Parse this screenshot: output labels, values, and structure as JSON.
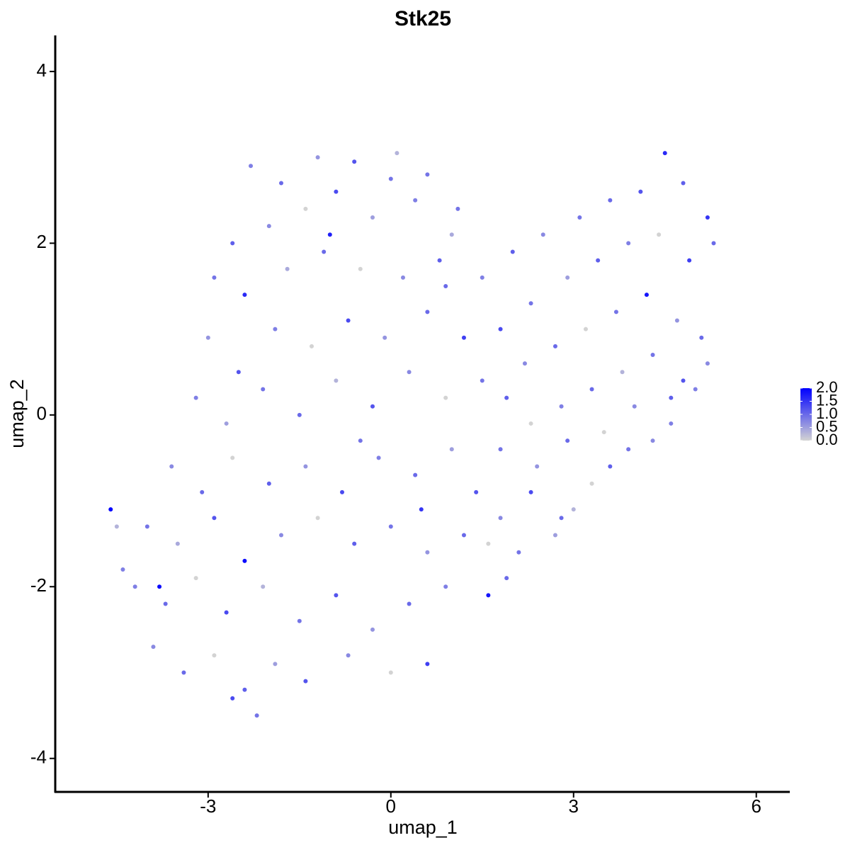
{
  "chart_data": {
    "type": "scatter",
    "title": "Stk25",
    "xlabel": "umap_1",
    "ylabel": "umap_2",
    "xlim": [
      -5.51,
      6.55
    ],
    "ylim": [
      -4.39,
      4.42
    ],
    "xticks": [
      -3,
      0,
      3,
      6
    ],
    "yticks": [
      -4,
      -2,
      0,
      2,
      4
    ],
    "colorbar_lim": [
      0,
      2
    ],
    "low_color": "#d3d3d3",
    "high_color": "#0000ff",
    "colorbar_ticks": [
      {
        "value": 0,
        "label": "0.0"
      },
      {
        "value": 0.5,
        "label": "0.5"
      },
      {
        "value": 1,
        "label": "1.0"
      },
      {
        "value": 1.5,
        "label": "1.5"
      },
      {
        "value": 2,
        "label": "2.0"
      }
    ],
    "x": [
      -2.3,
      -1.8,
      -1.2,
      -0.6,
      0.1,
      0.6,
      -2.6,
      -2.0,
      -1.4,
      -0.9,
      -0.3,
      0.4,
      1.1,
      -2.9,
      -2.4,
      -1.7,
      -1.1,
      -0.5,
      0.2,
      0.8,
      -3.0,
      -2.5,
      -1.9,
      -1.3,
      -0.7,
      -0.1,
      0.6,
      1.2,
      -3.2,
      -2.7,
      -2.1,
      -1.5,
      -0.9,
      -0.3,
      0.3,
      0.9,
      1.5,
      -3.6,
      -3.1,
      -2.6,
      -2.0,
      -1.4,
      -0.8,
      -0.2,
      0.4,
      1.0,
      -4.0,
      -3.5,
      -2.9,
      -2.4,
      -1.8,
      -1.2,
      -0.6,
      0.0,
      0.6,
      1.2,
      -4.2,
      -3.7,
      -3.2,
      -2.7,
      -2.1,
      -1.5,
      -0.9,
      -0.3,
      0.3,
      0.9,
      1.6,
      -3.9,
      -3.4,
      -2.9,
      -2.4,
      -1.9,
      -1.4,
      -0.7,
      0.0,
      0.6,
      -2.2,
      -2.6,
      -3.8,
      -4.6,
      -4.5,
      -4.4,
      1.5,
      2.0,
      2.5,
      3.1,
      3.6,
      4.1,
      4.5,
      4.8,
      5.2,
      5.3,
      4.9,
      4.4,
      3.9,
      3.4,
      2.9,
      2.3,
      1.8,
      2.2,
      2.7,
      3.2,
      3.7,
      4.2,
      4.7,
      5.1,
      5.2,
      4.8,
      4.3,
      3.8,
      3.3,
      2.8,
      2.3,
      1.9,
      1.8,
      2.4,
      2.9,
      3.5,
      4.0,
      4.6,
      5.0,
      4.6,
      3.9,
      3.3,
      2.8,
      2.3,
      1.8,
      2.1,
      2.7,
      1.9,
      3.0,
      3.6,
      4.3,
      1.4,
      1.6,
      0.9,
      0.5,
      -0.5,
      -1.0,
      0.0,
      1.0
    ],
    "y": [
      2.9,
      2.7,
      3.0,
      2.95,
      3.05,
      2.8,
      2.0,
      2.2,
      2.4,
      2.6,
      2.3,
      2.5,
      2.4,
      1.6,
      1.4,
      1.7,
      1.9,
      1.7,
      1.6,
      1.8,
      0.9,
      0.5,
      1.0,
      0.8,
      1.1,
      0.9,
      1.2,
      0.9,
      0.2,
      -0.1,
      0.3,
      0.0,
      0.4,
      0.1,
      0.5,
      0.2,
      0.4,
      -0.6,
      -0.9,
      -0.5,
      -0.8,
      -0.6,
      -0.9,
      -0.5,
      -0.7,
      -0.4,
      -1.3,
      -1.5,
      -1.2,
      -1.7,
      -1.4,
      -1.2,
      -1.5,
      -1.3,
      -1.6,
      -1.4,
      -2.0,
      -2.2,
      -1.9,
      -2.3,
      -2.0,
      -2.4,
      -2.1,
      -2.5,
      -2.2,
      -2.0,
      -2.1,
      -2.7,
      -3.0,
      -2.8,
      -3.2,
      -2.9,
      -3.1,
      -2.8,
      -3.0,
      -2.9,
      -3.5,
      -3.3,
      -2.0,
      -1.1,
      -1.3,
      -1.8,
      1.6,
      1.9,
      2.1,
      2.3,
      2.5,
      2.6,
      3.05,
      2.7,
      2.3,
      2.0,
      1.8,
      2.1,
      2.0,
      1.8,
      1.6,
      1.3,
      1.0,
      0.6,
      0.8,
      1.0,
      1.2,
      1.4,
      1.1,
      0.9,
      0.6,
      0.4,
      0.7,
      0.5,
      0.3,
      0.1,
      -0.1,
      0.2,
      -0.4,
      -0.6,
      -0.3,
      -0.2,
      0.1,
      0.2,
      0.3,
      -0.1,
      -0.4,
      -0.8,
      -1.2,
      -0.9,
      -1.2,
      -1.6,
      -1.4,
      -1.9,
      -1.1,
      -0.6,
      -0.3,
      -0.9,
      -1.5,
      1.5,
      -1.1,
      -0.3,
      2.1,
      2.75,
      2.1
    ],
    "expression": [
      0.8,
      1.0,
      0.6,
      1.2,
      0.3,
      0.9,
      1.1,
      0.7,
      0.0,
      1.3,
      0.5,
      0.8,
      0.9,
      0.9,
      1.6,
      0.4,
      1.0,
      0.0,
      0.7,
      1.1,
      0.6,
      1.2,
      0.8,
      0.0,
      1.3,
      0.6,
      1.0,
      1.4,
      0.8,
      0.5,
      0.9,
      1.0,
      0.3,
      1.2,
      0.7,
      0.0,
      0.9,
      0.7,
      1.0,
      0.0,
      1.1,
      0.6,
      1.3,
      0.8,
      1.0,
      0.5,
      0.9,
      0.4,
      1.2,
      1.9,
      0.7,
      0.0,
      1.1,
      0.9,
      0.6,
      1.0,
      0.8,
      1.0,
      0.0,
      1.3,
      0.3,
      0.9,
      1.2,
      0.6,
      1.0,
      0.8,
      1.8,
      0.7,
      1.0,
      0.0,
      1.1,
      0.5,
      1.2,
      0.7,
      0.0,
      1.4,
      0.9,
      1.3,
      1.9,
      2.0,
      0.3,
      0.8,
      0.8,
      1.1,
      0.7,
      0.9,
      1.0,
      1.2,
      1.6,
      1.1,
      1.5,
      1.0,
      1.4,
      0.0,
      0.8,
      1.1,
      0.5,
      0.9,
      1.3,
      0.7,
      1.0,
      0.0,
      0.9,
      1.8,
      0.6,
      1.0,
      0.7,
      1.2,
      0.9,
      0.3,
      1.0,
      0.8,
      0.0,
      1.1,
      0.9,
      0.6,
      1.0,
      0.0,
      0.7,
      1.1,
      0.8,
      0.8,
      0.9,
      0.0,
      1.0,
      1.3,
      0.7,
      0.9,
      0.5,
      1.0,
      0.3,
      1.1,
      0.7,
      1.2,
      0.0,
      1.0,
      1.5,
      0.9,
      1.7,
      0.9,
      0.4
    ]
  }
}
